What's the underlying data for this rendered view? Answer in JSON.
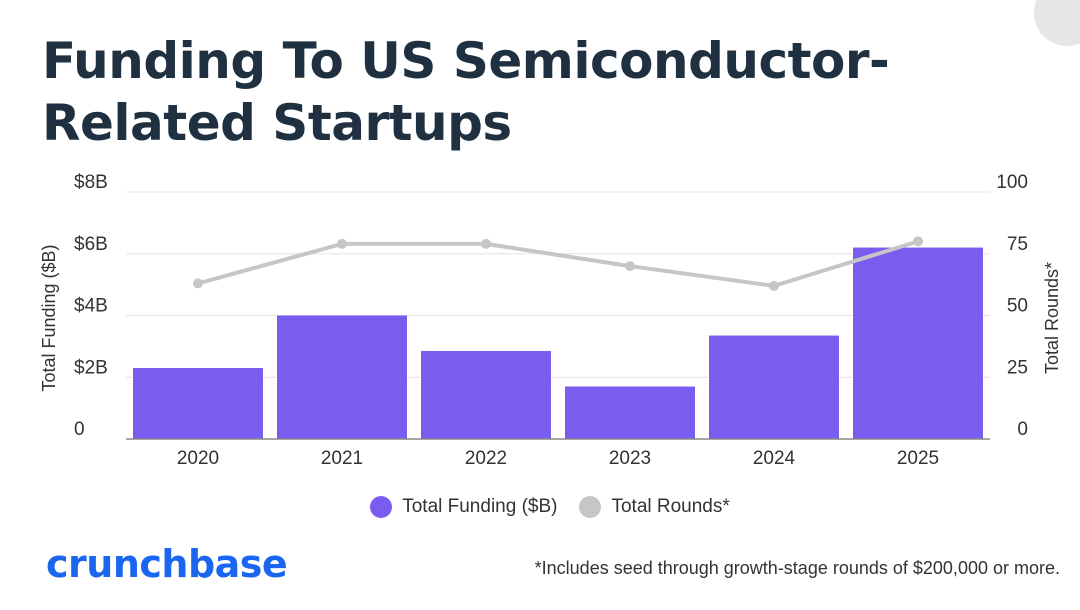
{
  "title": "Funding To US Semiconductor-Related Startups",
  "logo": "crunchbase",
  "footnote": "*Includes seed through growth-stage rounds of $200,000 or more.",
  "colors": {
    "bars": "#7b5cf0",
    "line": "#c6c6c6",
    "title": "#1f3140",
    "logo": "#1a66f0"
  },
  "chart_data": {
    "type": "bar",
    "categories": [
      "2020",
      "2021",
      "2022",
      "2023",
      "2024",
      "2025"
    ],
    "series": [
      {
        "name": "Total Funding ($B)",
        "type": "bar",
        "axis": "left",
        "values": [
          2.3,
          4.0,
          2.85,
          1.7,
          3.35,
          6.2
        ]
      },
      {
        "name": "Total Rounds*",
        "type": "line",
        "axis": "right",
        "values": [
          63,
          79,
          79,
          70,
          62,
          80
        ]
      }
    ],
    "ylabel": "Total Funding ($B)",
    "ylabel_right": "Total Rounds*",
    "ylim": [
      0,
      8
    ],
    "ylim_right": [
      0,
      100
    ],
    "yticks_left": [
      "0",
      "$2B",
      "$4B",
      "$6B",
      "$8B"
    ],
    "yticks_right": [
      "0",
      "25",
      "50",
      "75",
      "100"
    ],
    "grid": true,
    "legend": "bottom"
  }
}
